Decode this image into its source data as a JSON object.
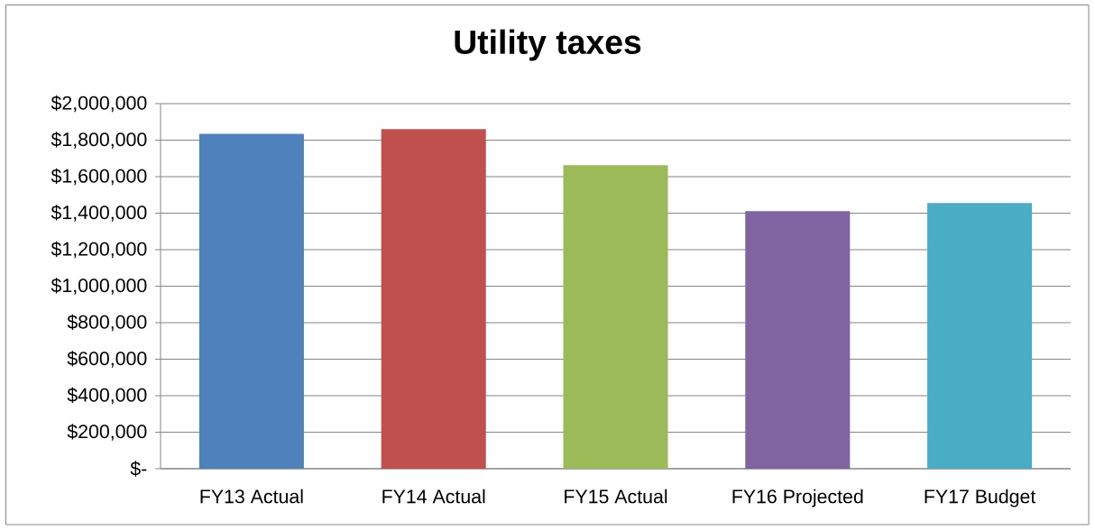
{
  "chart_data": {
    "type": "bar",
    "title": "Utility taxes",
    "categories": [
      "FY13 Actual",
      "FY14 Actual",
      "FY15 Actual",
      "FY16 Projected",
      "FY17 Budget"
    ],
    "values": [
      1835000,
      1860000,
      1663000,
      1411000,
      1455000
    ],
    "colors": [
      "#4f81bd",
      "#c0504d",
      "#9bbb59",
      "#8064a2",
      "#4bacc6"
    ],
    "ylim": [
      0,
      2000000
    ],
    "yticks": [
      {
        "value": 0,
        "label": "$-"
      },
      {
        "value": 200000,
        "label": "$200,000"
      },
      {
        "value": 400000,
        "label": "$400,000"
      },
      {
        "value": 600000,
        "label": "$600,000"
      },
      {
        "value": 800000,
        "label": "$800,000"
      },
      {
        "value": 1000000,
        "label": "$1,000,000"
      },
      {
        "value": 1200000,
        "label": "$1,200,000"
      },
      {
        "value": 1400000,
        "label": "$1,400,000"
      },
      {
        "value": 1600000,
        "label": "$1,600,000"
      },
      {
        "value": 1800000,
        "label": "$1,800,000"
      },
      {
        "value": 2000000,
        "label": "$2,000,000"
      }
    ],
    "grid": "y"
  }
}
